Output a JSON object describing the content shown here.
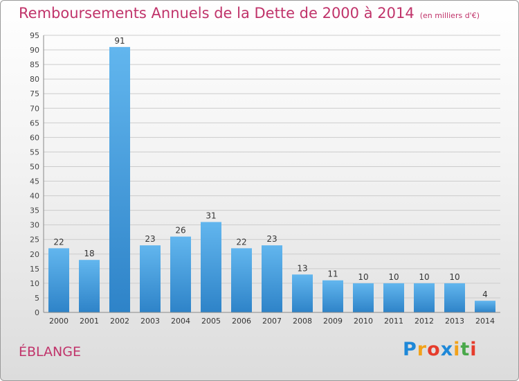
{
  "header": {
    "title": "Remboursements Annuels de la Dette de 2000 à 2014",
    "subtitle": "(en milliers d'€)"
  },
  "footer": {
    "commune": "ÉBLANGE",
    "logo": "Proxiti"
  },
  "colors": {
    "title": "#c0336a",
    "bar_top": "#62b6ee",
    "bar_bottom": "#2e83c8",
    "grid": "#cccccc"
  },
  "chart_data": {
    "type": "bar",
    "categories": [
      "2000",
      "2001",
      "2002",
      "2003",
      "2004",
      "2005",
      "2006",
      "2007",
      "2008",
      "2009",
      "2010",
      "2011",
      "2012",
      "2013",
      "2014"
    ],
    "values": [
      22,
      18,
      91,
      23,
      26,
      31,
      22,
      23,
      13,
      11,
      10,
      10,
      10,
      10,
      4
    ],
    "data_labels": [
      "22",
      "18",
      "91",
      "23",
      "26",
      "31",
      "22",
      "23",
      "13",
      "11",
      "10",
      "10",
      "10",
      "10",
      "4"
    ],
    "title": "Remboursements Annuels de la Dette de 2000 à 2014",
    "subtitle": "(en milliers d'€)",
    "xlabel": "",
    "ylabel": "",
    "ylim": [
      0,
      95
    ],
    "yticks": [
      0,
      5,
      10,
      15,
      20,
      25,
      30,
      35,
      40,
      45,
      50,
      55,
      60,
      65,
      70,
      75,
      80,
      85,
      90,
      95
    ],
    "grid": true,
    "legend": "none"
  }
}
